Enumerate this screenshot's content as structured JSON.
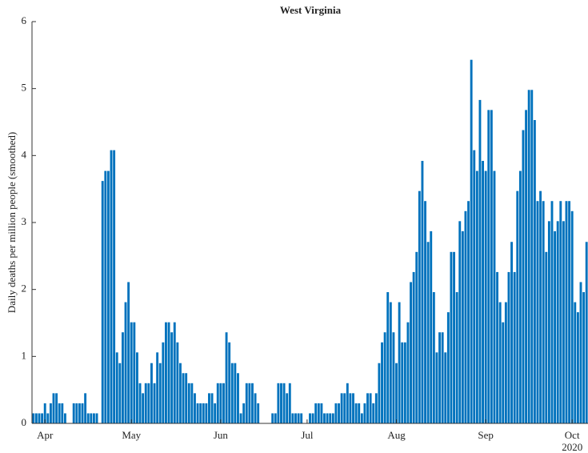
{
  "chart_data": {
    "type": "bar",
    "title": "West Virginia",
    "ylabel": "Daily deaths per million people (smoothed)",
    "x_year_label": "2020",
    "categories": [
      null,
      null,
      null,
      null,
      "Apr",
      null,
      null,
      null,
      null,
      null,
      null,
      null,
      null,
      null,
      null,
      null,
      null,
      null,
      null,
      null,
      null,
      null,
      null,
      null,
      null,
      null,
      null,
      null,
      null,
      null,
      null,
      null,
      null,
      null,
      "May",
      null,
      null,
      null,
      null,
      null,
      null,
      null,
      null,
      null,
      null,
      null,
      null,
      null,
      null,
      null,
      null,
      null,
      null,
      null,
      null,
      null,
      null,
      null,
      null,
      null,
      null,
      null,
      null,
      null,
      null,
      "Jun",
      null,
      null,
      null,
      null,
      null,
      null,
      null,
      null,
      null,
      null,
      null,
      null,
      null,
      null,
      null,
      null,
      null,
      null,
      null,
      null,
      null,
      null,
      null,
      null,
      null,
      null,
      null,
      null,
      null,
      "Jul",
      null,
      null,
      null,
      null,
      null,
      null,
      null,
      null,
      null,
      null,
      null,
      null,
      null,
      null,
      null,
      null,
      null,
      null,
      null,
      null,
      null,
      null,
      null,
      null,
      null,
      null,
      null,
      null,
      null,
      null,
      "Aug",
      null,
      null,
      null,
      null,
      null,
      null,
      null,
      null,
      null,
      null,
      null,
      null,
      null,
      null,
      null,
      null,
      null,
      null,
      null,
      null,
      null,
      null,
      null,
      null,
      null,
      null,
      null,
      null,
      null,
      null,
      "Sep",
      null,
      null,
      null,
      null,
      null,
      null,
      null,
      null,
      null,
      null,
      null,
      null,
      null,
      null,
      null,
      null,
      null,
      null,
      null,
      null,
      null,
      null,
      null,
      null,
      null,
      null,
      null,
      null,
      null,
      "Oct",
      null,
      null,
      null,
      null,
      null
    ],
    "values": [
      0.15,
      0.15,
      0.15,
      0.15,
      0.3,
      0.15,
      0.3,
      0.45,
      0.45,
      0.3,
      0.3,
      0.15,
      0,
      0,
      0.3,
      0.3,
      0.3,
      0.3,
      0.45,
      0.15,
      0.15,
      0.15,
      0.15,
      0,
      3.62,
      3.77,
      3.77,
      4.08,
      4.08,
      1.06,
      0.9,
      1.36,
      1.81,
      2.11,
      1.51,
      1.51,
      1.06,
      0.6,
      0.45,
      0.6,
      0.6,
      0.9,
      0.6,
      1.06,
      0.9,
      1.21,
      1.51,
      1.51,
      1.36,
      1.51,
      1.21,
      0.9,
      0.75,
      0.75,
      0.6,
      0.6,
      0.45,
      0.3,
      0.3,
      0.3,
      0.3,
      0.45,
      0.45,
      0.3,
      0.6,
      0.6,
      0.6,
      1.36,
      1.21,
      0.9,
      0.9,
      0.75,
      0.15,
      0.3,
      0.6,
      0.6,
      0.6,
      0.45,
      0.3,
      0,
      0,
      0,
      0,
      0.15,
      0.15,
      0.6,
      0.6,
      0.6,
      0.45,
      0.6,
      0.15,
      0.15,
      0.15,
      0.15,
      0,
      0,
      0.15,
      0.15,
      0.3,
      0.3,
      0.3,
      0.15,
      0.15,
      0.15,
      0.15,
      0.3,
      0.3,
      0.45,
      0.45,
      0.6,
      0.45,
      0.45,
      0.3,
      0.3,
      0.15,
      0.3,
      0.45,
      0.45,
      0.3,
      0.45,
      0.9,
      1.21,
      1.36,
      1.96,
      1.81,
      1.36,
      0.9,
      1.81,
      1.21,
      1.21,
      1.51,
      2.11,
      2.26,
      2.56,
      3.47,
      3.92,
      3.32,
      2.71,
      2.87,
      1.96,
      1.06,
      1.36,
      1.36,
      1.06,
      1.66,
      2.56,
      2.56,
      1.96,
      3.02,
      2.87,
      3.17,
      3.32,
      5.43,
      4.08,
      3.77,
      4.83,
      3.92,
      3.77,
      4.68,
      4.68,
      3.77,
      2.26,
      1.81,
      1.51,
      1.81,
      2.26,
      2.71,
      2.26,
      3.47,
      3.77,
      4.38,
      4.68,
      4.98,
      4.98,
      4.53,
      3.32,
      3.47,
      3.32,
      2.56,
      3.02,
      3.32,
      2.87,
      3.02,
      3.32,
      3.02,
      3.32,
      3.32,
      3.17,
      1.81,
      1.66,
      2.11,
      1.96,
      2.71
    ],
    "color": "#0072bd",
    "ylim": [
      0,
      6
    ],
    "yticks": [
      0,
      1,
      2,
      3,
      4,
      5,
      6
    ],
    "grid": false
  }
}
